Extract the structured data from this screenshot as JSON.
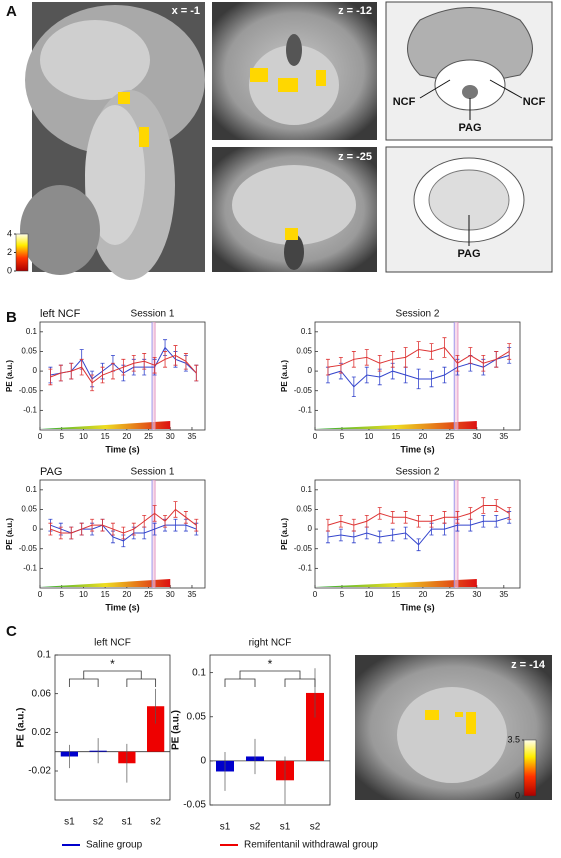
{
  "panel_labels": [
    "A",
    "B",
    "C"
  ],
  "images": {
    "sagittal": "x = -1",
    "axial_top": "z = -12",
    "axial_bottom": "z = -25",
    "axial_c": "z = -14",
    "atlas_top": [
      "NCF",
      "PAG",
      "NCF"
    ],
    "atlas_bottom": [
      "PAG"
    ],
    "colorbar_a": {
      "lim": [
        0,
        4
      ],
      "ticks": [
        4,
        2,
        0
      ]
    },
    "colorbar_c": {
      "lim": [
        0,
        3.5
      ],
      "ticks": [
        3.5,
        0
      ]
    }
  },
  "chart_data": [
    {
      "type": "line",
      "row_label": "left NCF",
      "title": "Session 1",
      "ylabel": "PE (a.u.)",
      "xlabel": "Time (s)",
      "xlim": [
        0,
        38
      ],
      "xticks": [
        0,
        5,
        10,
        15,
        20,
        25,
        30,
        35
      ],
      "ylim": [
        -0.15,
        0.125
      ],
      "yticks": [
        0.1,
        0.05,
        0,
        -0.05,
        -0.1
      ],
      "ramp": [
        0,
        30
      ],
      "vlines": [
        25.8,
        26.5
      ],
      "x": [
        2.4,
        4.8,
        7.2,
        9.6,
        12,
        14.4,
        16.8,
        19.2,
        21.6,
        24,
        26.4,
        28.8,
        31.2,
        33.6,
        36
      ],
      "series": [
        {
          "color": "#3344cc",
          "values": [
            -0.01,
            -0.005,
            0,
            0.03,
            -0.02,
            0,
            0.02,
            -0.005,
            0.01,
            0.01,
            0.01,
            0.06,
            0.03,
            0.02,
            -0.005
          ],
          "errors": [
            0.02,
            0.02,
            0.02,
            0.025,
            0.02,
            0.02,
            0.02,
            0.02,
            0.02,
            0.02,
            0.02,
            0.02,
            0.02,
            0.02,
            0.02
          ]
        },
        {
          "color": "#dd3333",
          "values": [
            -0.015,
            -0.005,
            0,
            0.01,
            -0.03,
            -0.01,
            0,
            0.01,
            0.02,
            0.025,
            0.015,
            0.03,
            0.04,
            0.025,
            -0.005
          ],
          "errors": [
            0.02,
            0.02,
            0.02,
            0.02,
            0.02,
            0.02,
            0.02,
            0.02,
            0.02,
            0.02,
            0.02,
            0.02,
            0.025,
            0.02,
            0.02
          ]
        }
      ]
    },
    {
      "type": "line",
      "title": "Session 2",
      "ylabel": "PE (a.u.)",
      "xlabel": "Time (s)",
      "xlim": [
        0,
        38
      ],
      "xticks": [
        0,
        5,
        10,
        15,
        20,
        25,
        30,
        35
      ],
      "ylim": [
        -0.15,
        0.125
      ],
      "yticks": [
        0.1,
        0.05,
        0,
        -0.05,
        -0.1
      ],
      "ramp": [
        0,
        30
      ],
      "vlines": [
        25.8,
        26.5
      ],
      "x": [
        2.4,
        4.8,
        7.2,
        9.6,
        12,
        14.4,
        16.8,
        19.2,
        21.6,
        24,
        26.4,
        28.8,
        31.2,
        33.6,
        36
      ],
      "series": [
        {
          "color": "#3344cc",
          "values": [
            -0.01,
            0,
            -0.04,
            -0.01,
            -0.015,
            0,
            -0.01,
            -0.02,
            -0.02,
            -0.01,
            0.01,
            0.02,
            0.01,
            0.03,
            0.04
          ],
          "errors": [
            0.02,
            0.02,
            0.025,
            0.02,
            0.02,
            0.02,
            0.02,
            0.025,
            0.02,
            0.02,
            0.02,
            0.02,
            0.02,
            0.02,
            0.02
          ]
        },
        {
          "color": "#dd3333",
          "values": [
            0.01,
            0.015,
            0.03,
            0.035,
            0.02,
            0.03,
            0.035,
            0.055,
            0.05,
            0.06,
            0.02,
            0.04,
            0.02,
            0.03,
            0.05
          ],
          "errors": [
            0.02,
            0.02,
            0.02,
            0.02,
            0.02,
            0.02,
            0.025,
            0.02,
            0.02,
            0.025,
            0.02,
            0.02,
            0.02,
            0.02,
            0.02
          ]
        }
      ]
    },
    {
      "type": "line",
      "row_label": "PAG",
      "title": "Session 1",
      "ylabel": "PE (a.u.)",
      "xlabel": "Time (s)",
      "xlim": [
        0,
        38
      ],
      "xticks": [
        0,
        5,
        10,
        15,
        20,
        25,
        30,
        35
      ],
      "ylim": [
        -0.15,
        0.125
      ],
      "yticks": [
        0.1,
        0.05,
        0,
        -0.05,
        -0.1
      ],
      "ramp": [
        0,
        30
      ],
      "vlines": [
        25.8,
        26.5
      ],
      "x": [
        2.4,
        4.8,
        7.2,
        9.6,
        12,
        14.4,
        16.8,
        19.2,
        21.6,
        24,
        26.4,
        28.8,
        31.2,
        33.6,
        36
      ],
      "series": [
        {
          "color": "#3344cc",
          "values": [
            0.01,
            0,
            -0.01,
            0,
            0,
            0.01,
            -0.02,
            -0.03,
            -0.01,
            -0.01,
            0,
            0.01,
            0.01,
            0.01,
            0
          ],
          "errors": [
            0.015,
            0.015,
            0.015,
            0.015,
            0.015,
            0.015,
            0.015,
            0.015,
            0.015,
            0.015,
            0.015,
            0.015,
            0.015,
            0.015,
            0.015
          ]
        },
        {
          "color": "#dd3333",
          "values": [
            0,
            -0.01,
            -0.01,
            0,
            0.01,
            0.01,
            0,
            -0.01,
            0,
            0.02,
            0.04,
            0.02,
            0.05,
            0.03,
            0.01
          ],
          "errors": [
            0.015,
            0.015,
            0.015,
            0.015,
            0.015,
            0.015,
            0.015,
            0.015,
            0.015,
            0.015,
            0.02,
            0.015,
            0.02,
            0.015,
            0.015
          ]
        }
      ]
    },
    {
      "type": "line",
      "title": "Session 2",
      "ylabel": "PE (a.u.)",
      "xlabel": "Time (s)",
      "xlim": [
        0,
        38
      ],
      "xticks": [
        0,
        5,
        10,
        15,
        20,
        25,
        30,
        35
      ],
      "ylim": [
        -0.15,
        0.125
      ],
      "yticks": [
        0.1,
        0.05,
        0,
        -0.05,
        -0.1
      ],
      "ramp": [
        0,
        30
      ],
      "vlines": [
        25.8,
        26.5
      ],
      "x": [
        2.4,
        4.8,
        7.2,
        9.6,
        12,
        14.4,
        16.8,
        19.2,
        21.6,
        24,
        26.4,
        28.8,
        31.2,
        33.6,
        36
      ],
      "series": [
        {
          "color": "#3344cc",
          "values": [
            -0.02,
            -0.015,
            -0.02,
            -0.01,
            -0.02,
            -0.015,
            -0.01,
            -0.04,
            0,
            0,
            0.01,
            0.01,
            0.02,
            0.02,
            0.03
          ],
          "errors": [
            0.015,
            0.015,
            0.015,
            0.015,
            0.015,
            0.015,
            0.015,
            0.015,
            0.015,
            0.015,
            0.015,
            0.015,
            0.015,
            0.015,
            0.015
          ]
        },
        {
          "color": "#dd3333",
          "values": [
            0.01,
            0.02,
            0.01,
            0.02,
            0.04,
            0.03,
            0.03,
            0.02,
            0.02,
            0.03,
            0.03,
            0.04,
            0.06,
            0.06,
            0.04
          ],
          "errors": [
            0.015,
            0.015,
            0.015,
            0.015,
            0.015,
            0.015,
            0.015,
            0.015,
            0.015,
            0.015,
            0.015,
            0.015,
            0.02,
            0.015,
            0.015
          ]
        }
      ]
    },
    {
      "type": "bar",
      "title": "left NCF",
      "ylabel": "PE (a.u.)",
      "annotation": "*",
      "categories": [
        "s1",
        "s2",
        "s1",
        "s2"
      ],
      "colors": [
        "#0000cc",
        "#0000cc",
        "#ee0000",
        "#ee0000"
      ],
      "values": [
        -0.005,
        0.001,
        -0.012,
        0.047
      ],
      "errors": [
        0.012,
        0.013,
        0.02,
        0.018
      ],
      "ylim": [
        -0.05,
        0.1
      ],
      "yticks": [
        0.1,
        0.06,
        0.02,
        -0.02
      ]
    },
    {
      "type": "bar",
      "title": "right NCF",
      "ylabel": "PE (a.u.)",
      "annotation": "*",
      "categories": [
        "s1",
        "s2",
        "s1",
        "s2"
      ],
      "colors": [
        "#0000cc",
        "#0000cc",
        "#ee0000",
        "#ee0000"
      ],
      "values": [
        -0.012,
        0.005,
        -0.022,
        0.077
      ],
      "errors": [
        0.022,
        0.02,
        0.027,
        0.028
      ],
      "ylim": [
        -0.05,
        0.12
      ],
      "yticks": [
        0.1,
        0.05,
        0,
        -0.05
      ]
    }
  ],
  "legend": [
    {
      "name": "Saline group",
      "color": "#0000cc"
    },
    {
      "name": "Remifentanil withdrawal group",
      "color": "#ee0000"
    }
  ]
}
